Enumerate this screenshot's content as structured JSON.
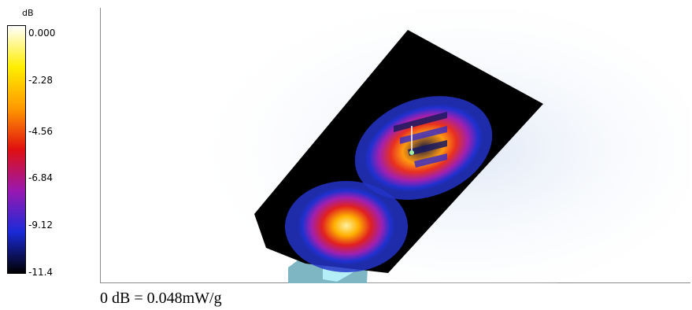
{
  "colorbar": {
    "unit": "dB",
    "ticks": [
      "0.000",
      "-2.28",
      "-4.56",
      "-6.84",
      "-9.12",
      "-11.4"
    ],
    "stops": [
      "#ffffff",
      "#ffee00",
      "#ff9900",
      "#e01010",
      "#9a18b0",
      "#1a2ad8",
      "#000000"
    ]
  },
  "reference_text": "0 dB = 0.048mW/g"
}
